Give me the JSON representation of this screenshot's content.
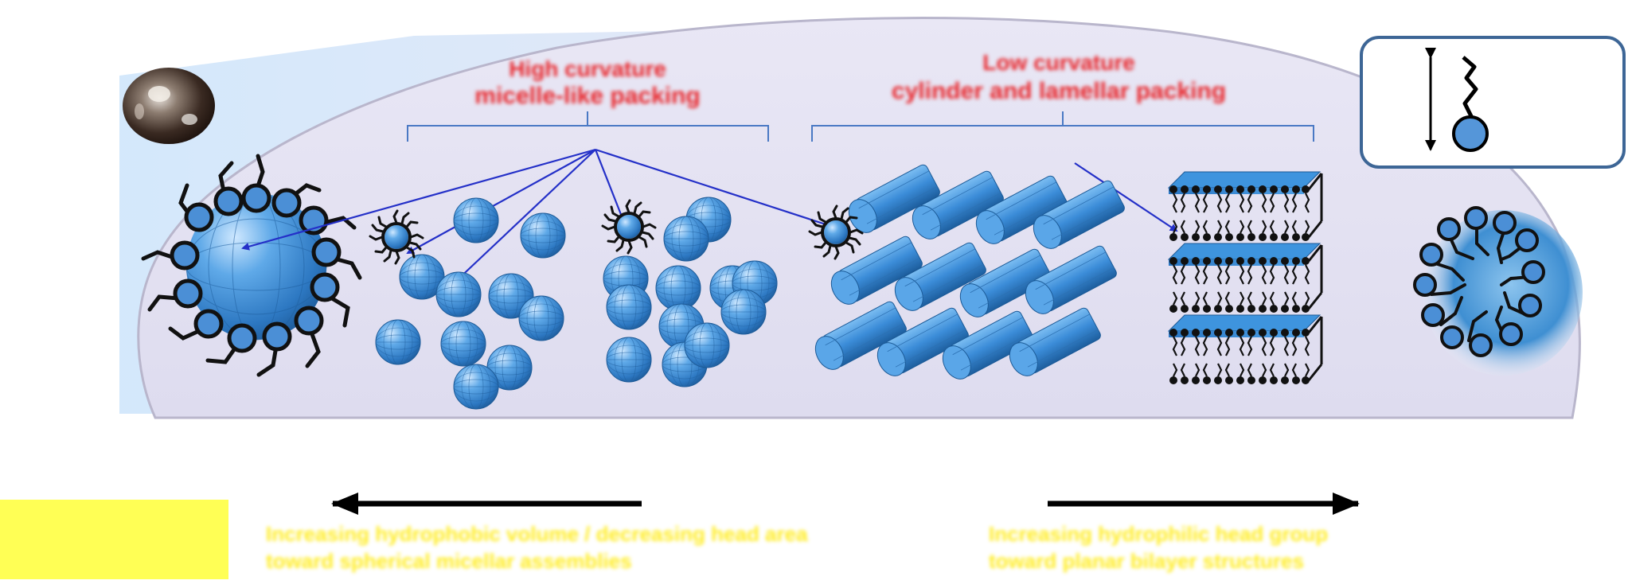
{
  "labels": {
    "heading_left_line1": "High curvature",
    "heading_left_line2": "micelle-like packing",
    "heading_right_line1": "Low curvature",
    "heading_right_line2": "cylinder and lamellar packing",
    "caption_left_line1": "Increasing hydrophobic volume / decreasing head area",
    "caption_left_line2": "toward spherical micellar assemblies",
    "caption_right_line1": "Increasing hydrophilic head group",
    "caption_right_line2": "toward planar bilayer structures"
  },
  "colors": {
    "heading_red": "#e8262b",
    "caption_yellow": "#ffec1f",
    "yellow_box": "#ffff55",
    "sphere_blue": "#3d8fd6",
    "bracket_blue": "#4a79c4",
    "arrow_blue": "#2430c8",
    "bubble_fill": "#e4e2f2",
    "legend_border": "#3d6696"
  },
  "icons": {
    "left_droplet": "droplet-photo-icon",
    "right_droplet": "droplet-photo-icon",
    "legend": "amphiphile-molecule-icon"
  }
}
